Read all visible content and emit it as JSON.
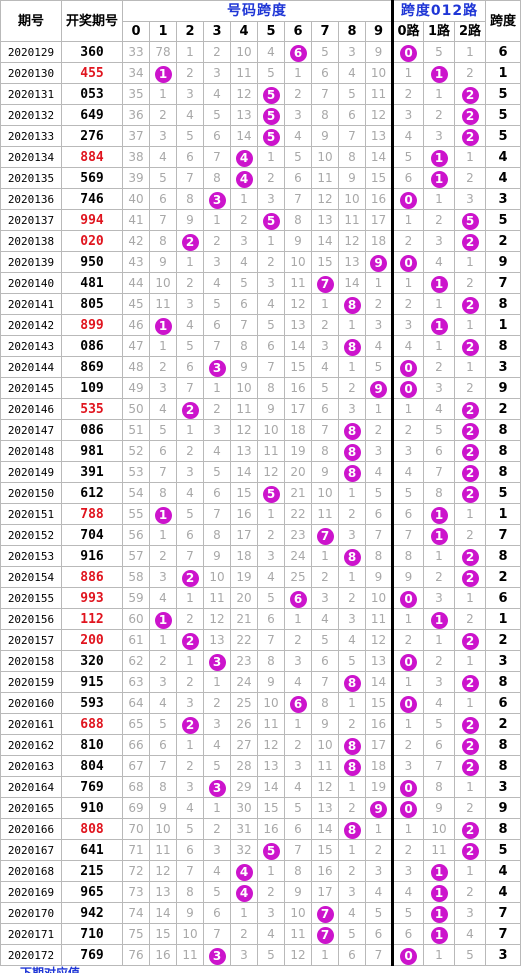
{
  "headers": {
    "issue": "期号",
    "draw": "开奖期号",
    "span_group": "号码跨度",
    "route_group": "跨度012路",
    "span": "跨度",
    "digits": [
      "0",
      "1",
      "2",
      "3",
      "4",
      "5",
      "6",
      "7",
      "8",
      "9"
    ],
    "routes": [
      "0路",
      "1路",
      "2路"
    ]
  },
  "colors": {
    "ball": "#cc14cc",
    "red_draw": "#e0141e",
    "header_blue": "#1f36d6"
  },
  "footer_text": "下期对应值",
  "chart_data": {
    "type": "table",
    "title": "号码跨度",
    "columns": [
      "期号",
      "开奖期号",
      "0",
      "1",
      "2",
      "3",
      "4",
      "5",
      "6",
      "7",
      "8",
      "9",
      "0路",
      "1路",
      "2路",
      "跨度"
    ],
    "rows": [
      {
        "issue": "2020129",
        "draw": "360",
        "red": false,
        "miss": [
          33,
          78,
          1,
          2,
          10,
          4,
          6,
          5,
          3,
          9
        ],
        "route": [
          0,
          5,
          1
        ],
        "span": 6
      },
      {
        "issue": "2020130",
        "draw": "455",
        "red": true,
        "miss": [
          34,
          1,
          2,
          3,
          11,
          5,
          1,
          6,
          4,
          10
        ],
        "route": [
          1,
          1,
          2
        ],
        "span": 1
      },
      {
        "issue": "2020131",
        "draw": "053",
        "red": false,
        "miss": [
          35,
          1,
          3,
          4,
          12,
          5,
          2,
          7,
          5,
          11
        ],
        "route": [
          2,
          1,
          2
        ],
        "span": 5
      },
      {
        "issue": "2020132",
        "draw": "649",
        "red": false,
        "miss": [
          36,
          2,
          4,
          5,
          13,
          5,
          3,
          8,
          6,
          12
        ],
        "route": [
          3,
          2,
          2
        ],
        "span": 5
      },
      {
        "issue": "2020133",
        "draw": "276",
        "red": false,
        "miss": [
          37,
          3,
          5,
          6,
          14,
          5,
          4,
          9,
          7,
          13
        ],
        "route": [
          4,
          3,
          2
        ],
        "span": 5
      },
      {
        "issue": "2020134",
        "draw": "884",
        "red": true,
        "miss": [
          38,
          4,
          6,
          7,
          4,
          1,
          5,
          10,
          8,
          14
        ],
        "route": [
          5,
          1,
          1
        ],
        "span": 4
      },
      {
        "issue": "2020135",
        "draw": "569",
        "red": false,
        "miss": [
          39,
          5,
          7,
          8,
          4,
          2,
          6,
          11,
          9,
          15
        ],
        "route": [
          6,
          1,
          2
        ],
        "span": 4
      },
      {
        "issue": "2020136",
        "draw": "746",
        "red": false,
        "miss": [
          40,
          6,
          8,
          3,
          1,
          3,
          7,
          12,
          10,
          16
        ],
        "route": [
          0,
          1,
          3
        ],
        "span": 3
      },
      {
        "issue": "2020137",
        "draw": "994",
        "red": true,
        "miss": [
          41,
          7,
          9,
          1,
          2,
          5,
          8,
          13,
          11,
          17
        ],
        "route": [
          1,
          2,
          5
        ],
        "span": 5
      },
      {
        "issue": "2020138",
        "draw": "020",
        "red": true,
        "miss": [
          42,
          8,
          2,
          2,
          3,
          1,
          9,
          14,
          12,
          18
        ],
        "route": [
          2,
          3,
          2
        ],
        "span": 2
      },
      {
        "issue": "2020139",
        "draw": "950",
        "red": false,
        "miss": [
          43,
          9,
          1,
          3,
          4,
          2,
          10,
          15,
          13,
          9
        ],
        "route": [
          0,
          4,
          1
        ],
        "span": 9
      },
      {
        "issue": "2020140",
        "draw": "481",
        "red": false,
        "miss": [
          44,
          10,
          2,
          4,
          5,
          3,
          11,
          7,
          14,
          1
        ],
        "route": [
          1,
          1,
          2
        ],
        "span": 7
      },
      {
        "issue": "2020141",
        "draw": "805",
        "red": false,
        "miss": [
          45,
          11,
          3,
          5,
          6,
          4,
          12,
          1,
          8,
          2
        ],
        "route": [
          2,
          1,
          2
        ],
        "span": 8
      },
      {
        "issue": "2020142",
        "draw": "899",
        "red": true,
        "miss": [
          46,
          1,
          4,
          6,
          7,
          5,
          13,
          2,
          1,
          3
        ],
        "route": [
          3,
          1,
          1
        ],
        "span": 1
      },
      {
        "issue": "2020143",
        "draw": "086",
        "red": false,
        "miss": [
          47,
          1,
          5,
          7,
          8,
          6,
          14,
          3,
          8,
          4
        ],
        "route": [
          4,
          1,
          2
        ],
        "span": 8
      },
      {
        "issue": "2020144",
        "draw": "869",
        "red": false,
        "miss": [
          48,
          2,
          6,
          3,
          9,
          7,
          15,
          4,
          1,
          5
        ],
        "route": [
          0,
          2,
          1
        ],
        "span": 3
      },
      {
        "issue": "2020145",
        "draw": "109",
        "red": false,
        "miss": [
          49,
          3,
          7,
          1,
          10,
          8,
          16,
          5,
          2,
          9
        ],
        "route": [
          0,
          3,
          2
        ],
        "span": 9
      },
      {
        "issue": "2020146",
        "draw": "535",
        "red": true,
        "miss": [
          50,
          4,
          2,
          2,
          11,
          9,
          17,
          6,
          3,
          1
        ],
        "route": [
          1,
          4,
          2
        ],
        "span": 2
      },
      {
        "issue": "2020147",
        "draw": "086",
        "red": false,
        "miss": [
          51,
          5,
          1,
          3,
          12,
          10,
          18,
          7,
          8,
          2
        ],
        "route": [
          2,
          5,
          2
        ],
        "span": 8
      },
      {
        "issue": "2020148",
        "draw": "981",
        "red": false,
        "miss": [
          52,
          6,
          2,
          4,
          13,
          11,
          19,
          8,
          8,
          3
        ],
        "route": [
          3,
          6,
          2
        ],
        "span": 8
      },
      {
        "issue": "2020149",
        "draw": "391",
        "red": false,
        "miss": [
          53,
          7,
          3,
          5,
          14,
          12,
          20,
          9,
          8,
          4
        ],
        "route": [
          4,
          7,
          2
        ],
        "span": 8
      },
      {
        "issue": "2020150",
        "draw": "612",
        "red": false,
        "miss": [
          54,
          8,
          4,
          6,
          15,
          5,
          21,
          10,
          1,
          5
        ],
        "route": [
          5,
          8,
          2
        ],
        "span": 5
      },
      {
        "issue": "2020151",
        "draw": "788",
        "red": true,
        "miss": [
          55,
          1,
          5,
          7,
          16,
          1,
          22,
          11,
          2,
          6
        ],
        "route": [
          6,
          1,
          1
        ],
        "span": 1
      },
      {
        "issue": "2020152",
        "draw": "704",
        "red": false,
        "miss": [
          56,
          1,
          6,
          8,
          17,
          2,
          23,
          7,
          3,
          7
        ],
        "route": [
          7,
          1,
          2
        ],
        "span": 7
      },
      {
        "issue": "2020153",
        "draw": "916",
        "red": false,
        "miss": [
          57,
          2,
          7,
          9,
          18,
          3,
          24,
          1,
          8,
          8
        ],
        "route": [
          8,
          1,
          2
        ],
        "span": 8
      },
      {
        "issue": "2020154",
        "draw": "886",
        "red": true,
        "miss": [
          58,
          3,
          2,
          10,
          19,
          4,
          25,
          2,
          1,
          9
        ],
        "route": [
          9,
          2,
          2
        ],
        "span": 2
      },
      {
        "issue": "2020155",
        "draw": "993",
        "red": true,
        "miss": [
          59,
          4,
          1,
          11,
          20,
          5,
          6,
          3,
          2,
          10
        ],
        "route": [
          0,
          3,
          1
        ],
        "span": 6
      },
      {
        "issue": "2020156",
        "draw": "112",
        "red": true,
        "miss": [
          60,
          1,
          2,
          12,
          21,
          6,
          1,
          4,
          3,
          11
        ],
        "route": [
          1,
          1,
          2
        ],
        "span": 1
      },
      {
        "issue": "2020157",
        "draw": "200",
        "red": true,
        "miss": [
          61,
          1,
          2,
          13,
          22,
          7,
          2,
          5,
          4,
          12
        ],
        "route": [
          2,
          1,
          2
        ],
        "span": 2
      },
      {
        "issue": "2020158",
        "draw": "320",
        "red": false,
        "miss": [
          62,
          2,
          1,
          3,
          23,
          8,
          3,
          6,
          5,
          13
        ],
        "route": [
          0,
          2,
          1
        ],
        "span": 3
      },
      {
        "issue": "2020159",
        "draw": "915",
        "red": false,
        "miss": [
          63,
          3,
          2,
          1,
          24,
          9,
          4,
          7,
          8,
          14
        ],
        "route": [
          1,
          3,
          2
        ],
        "span": 8
      },
      {
        "issue": "2020160",
        "draw": "593",
        "red": false,
        "miss": [
          64,
          4,
          3,
          2,
          25,
          10,
          6,
          8,
          1,
          15
        ],
        "route": [
          0,
          4,
          1
        ],
        "span": 6
      },
      {
        "issue": "2020161",
        "draw": "688",
        "red": true,
        "miss": [
          65,
          5,
          2,
          3,
          26,
          11,
          1,
          9,
          2,
          16
        ],
        "route": [
          1,
          5,
          2
        ],
        "span": 2
      },
      {
        "issue": "2020162",
        "draw": "810",
        "red": false,
        "miss": [
          66,
          6,
          1,
          4,
          27,
          12,
          2,
          10,
          8,
          17
        ],
        "route": [
          2,
          6,
          2
        ],
        "span": 8
      },
      {
        "issue": "2020163",
        "draw": "804",
        "red": false,
        "miss": [
          67,
          7,
          2,
          5,
          28,
          13,
          3,
          11,
          8,
          18
        ],
        "route": [
          3,
          7,
          2
        ],
        "span": 8
      },
      {
        "issue": "2020164",
        "draw": "769",
        "red": false,
        "miss": [
          68,
          8,
          3,
          3,
          29,
          14,
          4,
          12,
          1,
          19
        ],
        "route": [
          0,
          8,
          1
        ],
        "span": 3
      },
      {
        "issue": "2020165",
        "draw": "910",
        "red": false,
        "miss": [
          69,
          9,
          4,
          1,
          30,
          15,
          5,
          13,
          2,
          9
        ],
        "route": [
          0,
          9,
          2
        ],
        "span": 9
      },
      {
        "issue": "2020166",
        "draw": "808",
        "red": true,
        "miss": [
          70,
          10,
          5,
          2,
          31,
          16,
          6,
          14,
          8,
          1
        ],
        "route": [
          1,
          10,
          2
        ],
        "span": 8
      },
      {
        "issue": "2020167",
        "draw": "641",
        "red": false,
        "miss": [
          71,
          11,
          6,
          3,
          32,
          5,
          7,
          15,
          1,
          2
        ],
        "route": [
          2,
          11,
          2
        ],
        "span": 5
      },
      {
        "issue": "2020168",
        "draw": "215",
        "red": false,
        "miss": [
          72,
          12,
          7,
          4,
          4,
          1,
          8,
          16,
          2,
          3
        ],
        "route": [
          3,
          1,
          1
        ],
        "span": 4
      },
      {
        "issue": "2020169",
        "draw": "965",
        "red": false,
        "miss": [
          73,
          13,
          8,
          5,
          4,
          2,
          9,
          17,
          3,
          4
        ],
        "route": [
          4,
          1,
          2
        ],
        "span": 4
      },
      {
        "issue": "2020170",
        "draw": "942",
        "red": false,
        "miss": [
          74,
          14,
          9,
          6,
          1,
          3,
          10,
          7,
          4,
          5
        ],
        "route": [
          5,
          1,
          3
        ],
        "span": 7
      },
      {
        "issue": "2020171",
        "draw": "710",
        "red": false,
        "miss": [
          75,
          15,
          10,
          7,
          2,
          4,
          11,
          7,
          5,
          6
        ],
        "route": [
          6,
          1,
          4
        ],
        "span": 7
      },
      {
        "issue": "2020172",
        "draw": "769",
        "red": false,
        "miss": [
          76,
          16,
          11,
          3,
          3,
          5,
          12,
          1,
          6,
          7
        ],
        "route": [
          0,
          1,
          5
        ],
        "span": 3
      }
    ]
  }
}
